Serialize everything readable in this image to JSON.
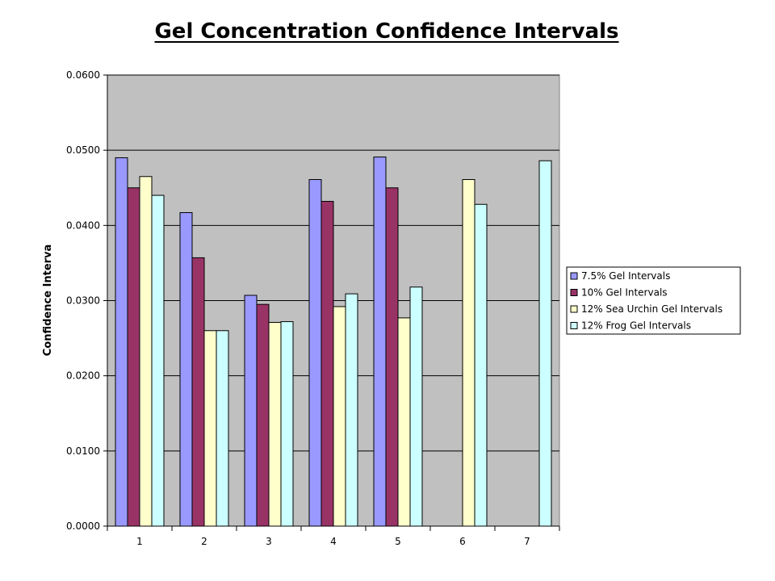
{
  "chart_data": {
    "type": "bar",
    "title": "Gel Concentration Confidence Intervals",
    "xlabel": "",
    "ylabel": "Confidence Interva",
    "categories": [
      "1",
      "2",
      "3",
      "4",
      "5",
      "6",
      "7"
    ],
    "ylim": [
      0,
      0.06
    ],
    "yticks": [
      "0.0000",
      "0.0100",
      "0.0200",
      "0.0300",
      "0.0400",
      "0.0500",
      "0.0600"
    ],
    "grid": true,
    "legend_position": "right",
    "plot_background": "#c0c0c0",
    "series": [
      {
        "name": "7.5% Gel Intervals",
        "color": "#9999ff",
        "values": [
          0.049,
          0.0417,
          0.0307,
          0.0461,
          0.0491,
          null,
          null
        ]
      },
      {
        "name": "10% Gel Intervals",
        "color": "#993366",
        "values": [
          0.045,
          0.0357,
          0.0295,
          0.0432,
          0.045,
          null,
          null
        ]
      },
      {
        "name": "12% Sea Urchin Gel Intervals",
        "color": "#ffffcc",
        "values": [
          0.0465,
          0.026,
          0.0271,
          0.0292,
          0.0277,
          0.0461,
          null
        ]
      },
      {
        "name": "12% Frog Gel Intervals",
        "color": "#ccffff",
        "values": [
          0.044,
          0.026,
          0.0272,
          0.0309,
          0.0318,
          0.0428,
          0.0486
        ]
      }
    ]
  }
}
